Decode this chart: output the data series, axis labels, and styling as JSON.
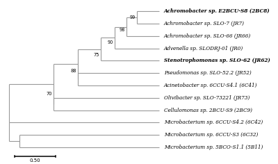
{
  "taxa": [
    {
      "name": "Achromobacter sp. E2BCU-S8 (2BC8)",
      "bold": true,
      "italic": true,
      "y": 12
    },
    {
      "name": "Achromobacter sp. SLO-7 (JR7)",
      "bold": false,
      "italic": true,
      "y": 11
    },
    {
      "name": "Achromobacter sp. SLO-66 (JR66)",
      "bold": false,
      "italic": true,
      "y": 10
    },
    {
      "name": "Advenella sp. SLODRJ-01 (JR0)",
      "bold": false,
      "italic": true,
      "y": 9
    },
    {
      "name": "Stenotrophomonas sp. SLO-62 (JR62)",
      "bold": true,
      "italic": true,
      "y": 8
    },
    {
      "name": "Pseudomonas sp. SLO-52.2 (JR52)",
      "bold": false,
      "italic": true,
      "y": 7
    },
    {
      "name": "Acinetobacter sp. 6CCU-S4.1 (6C41)",
      "bold": false,
      "italic": true,
      "y": 6
    },
    {
      "name": "Olivibacter sp. SLO-73221 (JR73)",
      "bold": false,
      "italic": true,
      "y": 5
    },
    {
      "name": "Cellulomonas sp. 2BCU-S9 (2BC9)",
      "bold": false,
      "italic": true,
      "y": 4
    },
    {
      "name": "Microbacterium sp. 6CCU-S4.2 (6C42)",
      "bold": false,
      "italic": true,
      "y": 3
    },
    {
      "name": "Microbacterium sp. 6CCU-S3 (6C32)",
      "bold": false,
      "italic": true,
      "y": 2
    },
    {
      "name": "Microbacterium sp. 5BCO-S1.1 (5B11)",
      "bold": false,
      "italic": true,
      "y": 1
    }
  ],
  "line_color": "#999999",
  "line_width": 0.8,
  "font_size": 5.2,
  "bootstrap_font_size": 4.8,
  "background_color": "#ffffff",
  "scalebar_label": "0.50"
}
